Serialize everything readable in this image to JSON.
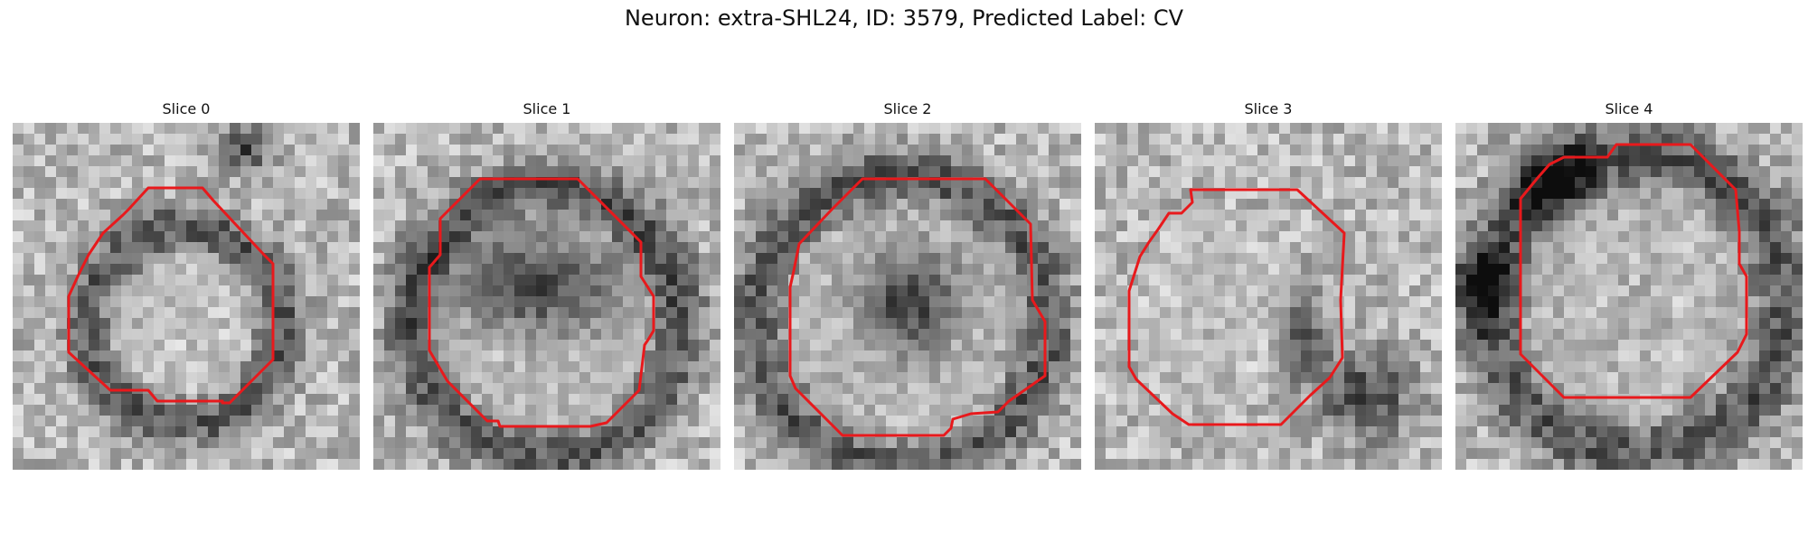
{
  "figure": {
    "title": "Neuron: extra-SHL24, ID: 3579, Predicted Label: CV"
  },
  "style": {
    "contour_color": "#e8191c"
  },
  "panels": [
    {
      "title": "Slice 0"
    },
    {
      "title": "Slice 1"
    },
    {
      "title": "Slice 2"
    },
    {
      "title": "Slice 3"
    },
    {
      "title": "Slice 4"
    }
  ]
}
